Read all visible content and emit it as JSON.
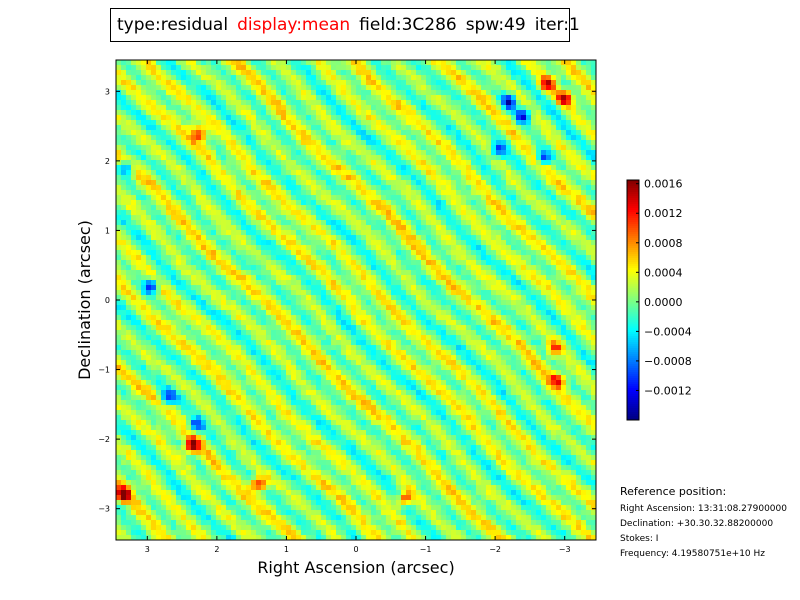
{
  "title": {
    "type": "type:residual",
    "display": "display:mean",
    "field": "field:3C286",
    "spw": "spw:49",
    "iter": "iter:1",
    "display_color": "#ff0000"
  },
  "reference": {
    "heading": "Reference position:",
    "ra": "Right Ascension: 13:31:08.27900000",
    "dec": "Declination: +30.30.32.88200000",
    "stokes": "Stokes: I",
    "frequency": "Frequency: 4.19580751e+10 Hz"
  },
  "chart_data": {
    "type": "heatmap",
    "xlabel": "Right Ascension (arcsec)",
    "ylabel": "Declination (arcsec)",
    "xlim": [
      3.45,
      -3.45
    ],
    "ylim": [
      -3.45,
      3.45
    ],
    "xticks": [
      3,
      2,
      1,
      0,
      -1,
      -2,
      -3
    ],
    "yticks": [
      3,
      2,
      1,
      0,
      -1,
      -2,
      -3
    ],
    "xtick_labels": [
      "3",
      "2",
      "1",
      "0",
      "−1",
      "−2",
      "−3"
    ],
    "ytick_labels": [
      "3",
      "2",
      "1",
      "0",
      "−1",
      "−2",
      "−3"
    ],
    "colormap": "jet",
    "colorbar": {
      "vmin": -0.0016,
      "vmax": 0.00165,
      "ticks": [
        0.0016,
        0.0012,
        0.0008,
        0.0004,
        0.0,
        -0.0004,
        -0.0008,
        -0.0012
      ],
      "tick_labels": [
        "0.0016",
        "0.0012",
        "0.0008",
        "0.0004",
        "0.0000",
        "−0.0004",
        "−0.0008",
        "−0.0012"
      ]
    },
    "pattern": {
      "orientation": "diagonal stripes from upper-left to lower-right",
      "mean_level": 0.0001,
      "hotspots": [
        {
          "x": 3.35,
          "y": -2.8,
          "value": 0.0016
        },
        {
          "x": 2.35,
          "y": -2.1,
          "value": 0.0016
        },
        {
          "x": 1.4,
          "y": -2.65,
          "value": 0.0014
        },
        {
          "x": -0.7,
          "y": -2.85,
          "value": 0.0013
        },
        {
          "x": -3.0,
          "y": 2.9,
          "value": 0.0014
        },
        {
          "x": -2.75,
          "y": 3.1,
          "value": 0.0013
        },
        {
          "x": 2.25,
          "y": 2.4,
          "value": 0.0011
        },
        {
          "x": -2.9,
          "y": -1.15,
          "value": 0.0011
        },
        {
          "x": -2.85,
          "y": -0.7,
          "value": 0.001
        }
      ],
      "coldspots": [
        {
          "x": -2.2,
          "y": 2.85,
          "value": -0.0012
        },
        {
          "x": -2.4,
          "y": 2.65,
          "value": -0.0011
        },
        {
          "x": -2.7,
          "y": 2.05,
          "value": -0.0011
        },
        {
          "x": -2.05,
          "y": 2.15,
          "value": -0.0009
        },
        {
          "x": 2.95,
          "y": 0.2,
          "value": -0.0011
        },
        {
          "x": 2.7,
          "y": -1.4,
          "value": -0.0009
        },
        {
          "x": 2.3,
          "y": -1.8,
          "value": -0.0008
        },
        {
          "x": 3.3,
          "y": 1.9,
          "value": -0.0009
        }
      ]
    }
  }
}
